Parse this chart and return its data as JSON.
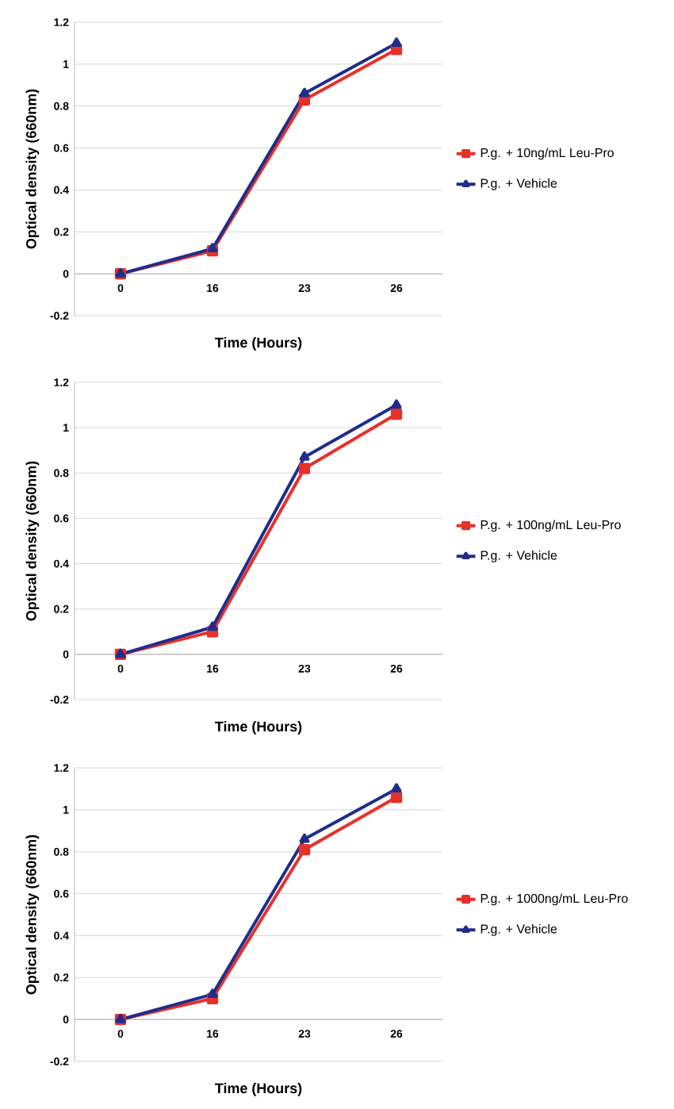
{
  "chart_data": [
    {
      "type": "line",
      "xlabel": "Time (Hours)",
      "ylabel": "Optical density (660nm)",
      "categories": [
        "0",
        "16",
        "23",
        "26"
      ],
      "ylim": [
        -0.2,
        1.2
      ],
      "yticks": [
        -0.2,
        0,
        0.2,
        0.4,
        0.6,
        0.8,
        1,
        1.2
      ],
      "grid": "y",
      "legend": "right",
      "series": [
        {
          "name": "P.g. + 10ng/mL Leu-Pro",
          "color": "#e8302a",
          "marker": "square",
          "values": [
            0,
            0.11,
            0.83,
            1.07
          ]
        },
        {
          "name": "P.g. + Vehicle",
          "color": "#1f2d8a",
          "marker": "triangle",
          "values": [
            0,
            0.12,
            0.86,
            1.1
          ]
        }
      ]
    },
    {
      "type": "line",
      "xlabel": "Time (Hours)",
      "ylabel": "Optical density (660nm)",
      "categories": [
        "0",
        "16",
        "23",
        "26"
      ],
      "ylim": [
        -0.2,
        1.2
      ],
      "yticks": [
        -0.2,
        0,
        0.2,
        0.4,
        0.6,
        0.8,
        1,
        1.2
      ],
      "grid": "y",
      "legend": "right",
      "series": [
        {
          "name": "P.g. + 100ng/mL Leu-Pro",
          "color": "#e8302a",
          "marker": "square",
          "values": [
            0,
            0.1,
            0.82,
            1.06
          ]
        },
        {
          "name": "P.g. + Vehicle",
          "color": "#1f2d8a",
          "marker": "triangle",
          "values": [
            0,
            0.12,
            0.87,
            1.1
          ]
        }
      ]
    },
    {
      "type": "line",
      "xlabel": "Time (Hours)",
      "ylabel": "Optical density (660nm)",
      "categories": [
        "0",
        "16",
        "23",
        "26"
      ],
      "ylim": [
        -0.2,
        1.2
      ],
      "yticks": [
        -0.2,
        0,
        0.2,
        0.4,
        0.6,
        0.8,
        1,
        1.2
      ],
      "grid": "y",
      "legend": "right",
      "series": [
        {
          "name": "P.g. + 1000ng/mL Leu-Pro",
          "color": "#e8302a",
          "marker": "square",
          "values": [
            0,
            0.1,
            0.81,
            1.06
          ]
        },
        {
          "name": "P.g. + Vehicle",
          "color": "#1f2d8a",
          "marker": "triangle",
          "values": [
            0,
            0.12,
            0.86,
            1.1
          ]
        }
      ]
    }
  ]
}
